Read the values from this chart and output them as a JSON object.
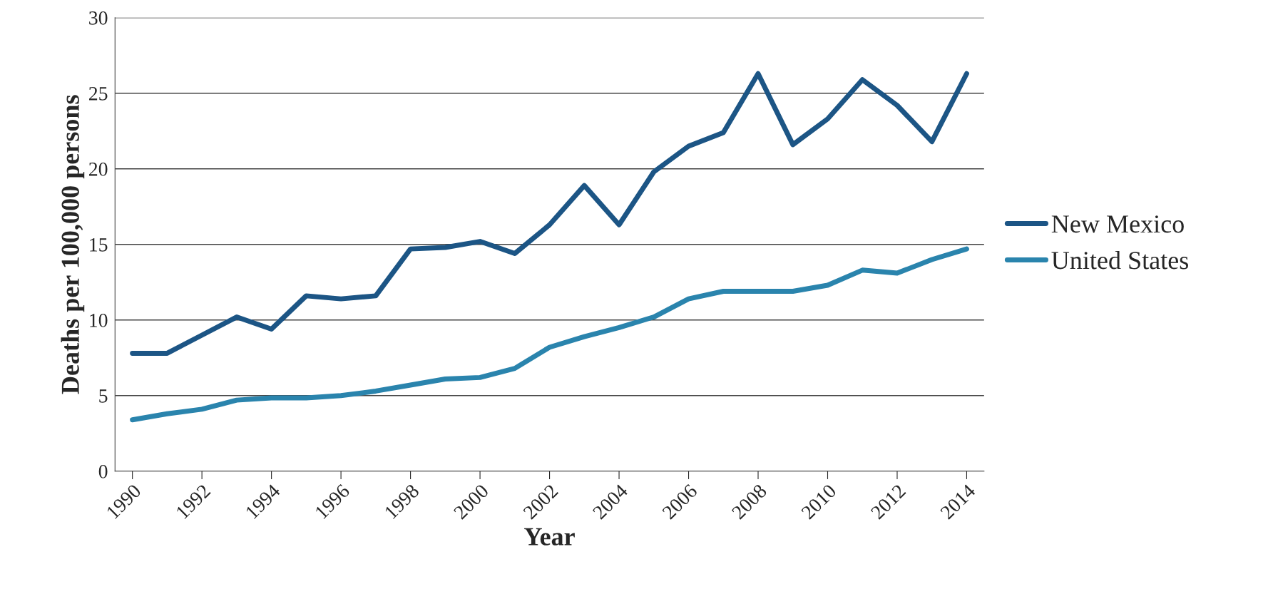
{
  "chart_data": {
    "type": "line",
    "xlabel": "Year",
    "ylabel": "Deaths per 100,000 persons",
    "x": [
      1990,
      1991,
      1992,
      1993,
      1994,
      1995,
      1996,
      1997,
      1998,
      1999,
      2000,
      2001,
      2002,
      2003,
      2004,
      2005,
      2006,
      2007,
      2008,
      2009,
      2010,
      2011,
      2012,
      2013,
      2014
    ],
    "series": [
      {
        "name": "New Mexico",
        "color": "#1c5585",
        "values": [
          7.8,
          7.8,
          9.0,
          10.2,
          9.4,
          11.6,
          11.4,
          11.6,
          14.7,
          14.8,
          15.2,
          14.4,
          16.3,
          18.9,
          16.3,
          19.8,
          21.5,
          22.4,
          26.3,
          21.6,
          23.3,
          25.9,
          24.2,
          21.8,
          26.3
        ]
      },
      {
        "name": "United States",
        "color": "#2a84ad",
        "values": [
          3.4,
          3.8,
          4.1,
          4.7,
          4.85,
          4.85,
          5.0,
          5.3,
          5.7,
          6.1,
          6.2,
          6.8,
          8.2,
          8.9,
          9.5,
          10.2,
          11.4,
          11.9,
          11.9,
          11.9,
          12.3,
          13.3,
          13.1,
          14.0,
          14.7
        ]
      }
    ],
    "xlim": [
      1989.5,
      2014.5
    ],
    "xticks": [
      1990,
      1992,
      1994,
      1996,
      1998,
      2000,
      2002,
      2004,
      2006,
      2008,
      2010,
      2012,
      2014
    ],
    "ylim": [
      0,
      30
    ],
    "yticks": [
      0,
      5,
      10,
      15,
      20,
      25,
      30
    ],
    "grid": "y",
    "legend": "right",
    "line_style": "solid",
    "marker": "none"
  }
}
